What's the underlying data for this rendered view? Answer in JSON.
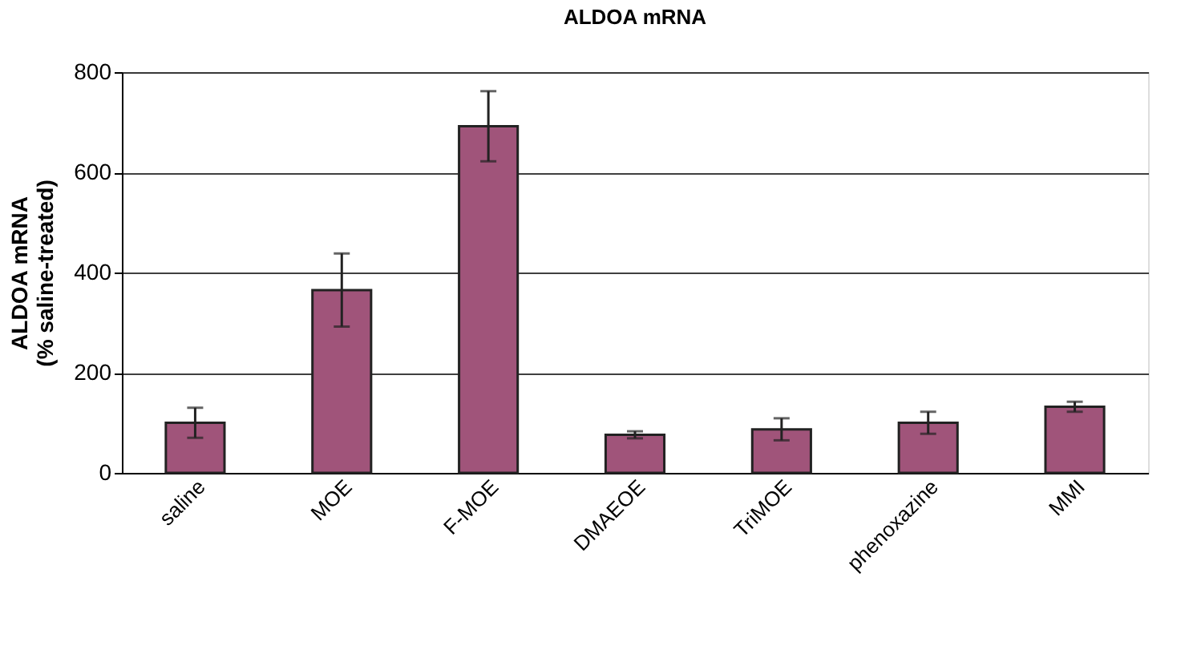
{
  "chart_data": {
    "type": "bar",
    "title": "ALDOA mRNA",
    "ylabel": "ALDOA mRNA\n(% saline-treated)",
    "categories": [
      "saline",
      "MOE",
      "F-MOE",
      "DMAEOE",
      "TriMOE",
      "phenoxazine",
      "MMI"
    ],
    "values": [
      100,
      365,
      692,
      76,
      87,
      100,
      132
    ],
    "errors": [
      30,
      73,
      70,
      7,
      22,
      22,
      10
    ],
    "color": "#a0547a",
    "ylim": [
      0,
      800
    ],
    "yticks": [
      0,
      200,
      400,
      600,
      800
    ],
    "grid": "y"
  }
}
